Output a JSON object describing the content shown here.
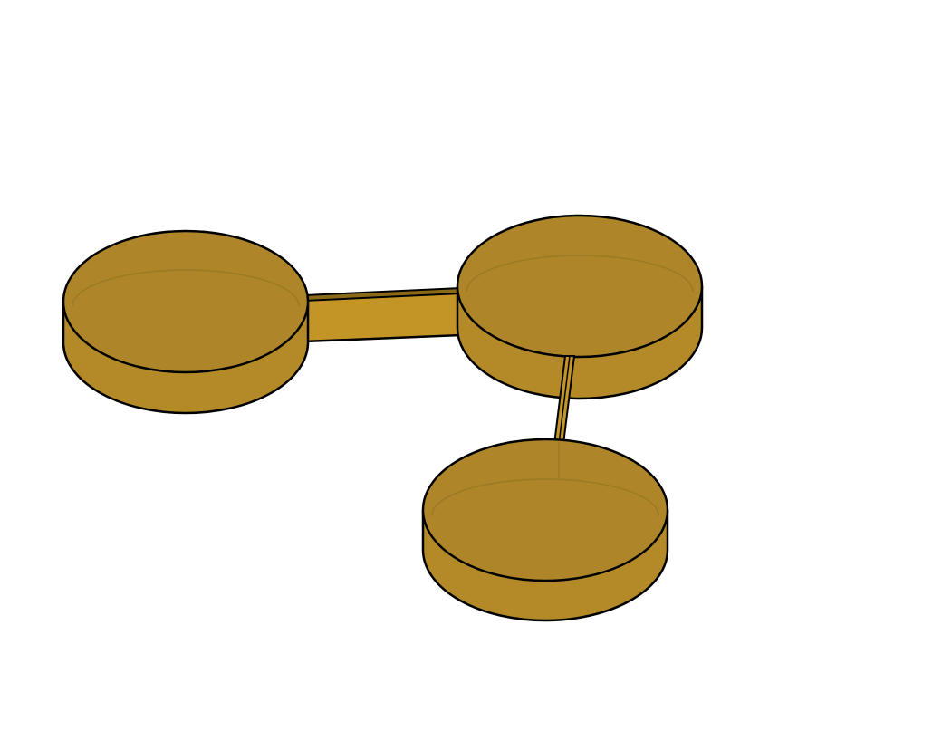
{
  "scene": {
    "background": "#ffffff",
    "colors": {
      "side": "#b38a27",
      "top": "#ae8529",
      "connector": "#c29526",
      "connector_dark": "#8a6a16",
      "inner_rim": "#9a7a22",
      "outline": "#000000"
    },
    "objects": [
      {
        "name": "left-dish",
        "kind": "cylindrical-dish"
      },
      {
        "name": "right-dish",
        "kind": "cylindrical-dish"
      },
      {
        "name": "bottom-dish",
        "kind": "cylindrical-dish"
      },
      {
        "name": "horizontal-connector",
        "kind": "rectangular-bar"
      },
      {
        "name": "vertical-connector",
        "kind": "thin-bar"
      }
    ]
  }
}
